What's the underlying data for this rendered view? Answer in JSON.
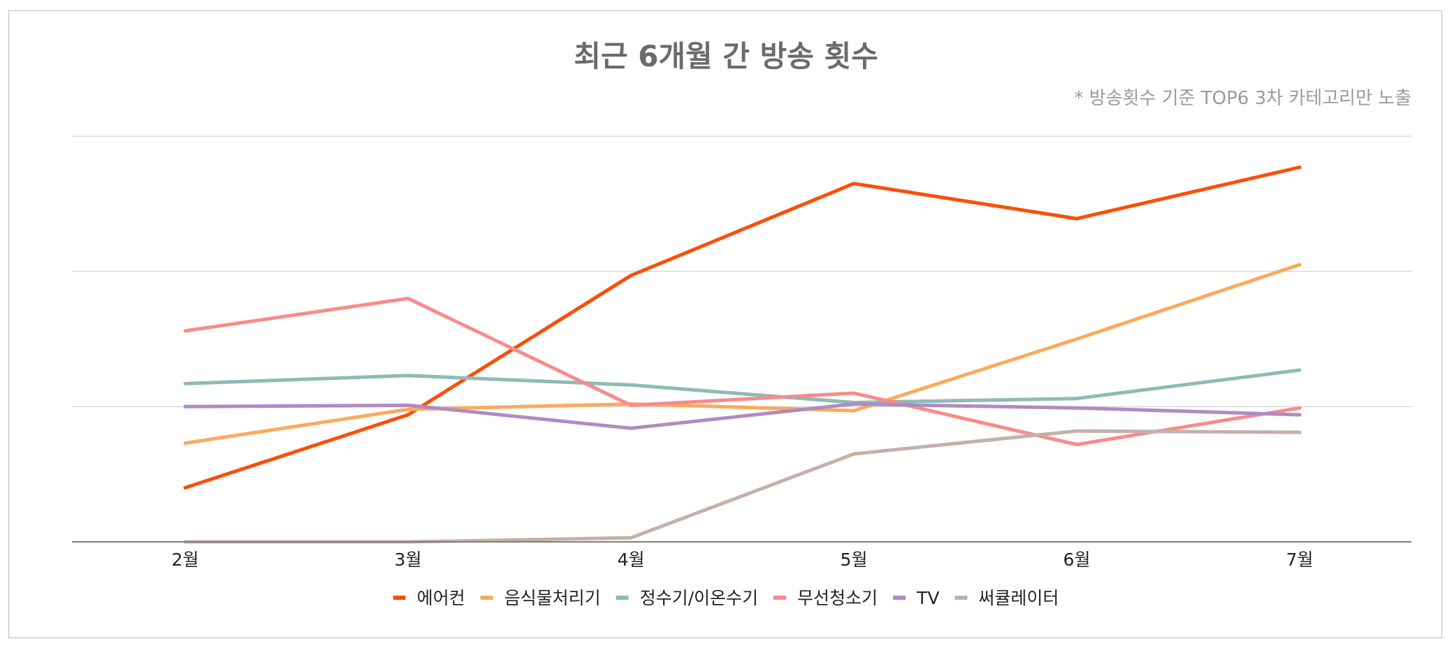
{
  "chart_data": {
    "type": "line",
    "title": "최근 6개월 간 방송 횟수",
    "subtitle": "* 방송횟수 기준 TOP6 3차 카테고리만 노출",
    "xlabel": "",
    "ylabel": "",
    "categories": [
      "2월",
      "3월",
      "4월",
      "5월",
      "6월",
      "7월"
    ],
    "ylim": [
      0,
      300
    ],
    "ygrid": [
      0,
      100,
      200,
      300
    ],
    "grid": true,
    "legend_position": "bottom",
    "series": [
      {
        "name": "에어컨",
        "color": "#fc4e07",
        "values": [
          40,
          94,
          197,
          265,
          239,
          277
        ]
      },
      {
        "name": "음식물처리기",
        "color": "#fbaa5d",
        "values": [
          73,
          98,
          102,
          97,
          150,
          205
        ]
      },
      {
        "name": "정수기/이온수기",
        "color": "#8fbab6",
        "values": [
          117,
          123,
          116,
          103,
          106,
          127
        ]
      },
      {
        "name": "무선청소기",
        "color": "#f88b8b",
        "values": [
          156,
          180,
          101,
          110,
          72,
          99
        ]
      },
      {
        "name": "TV",
        "color": "#ae8cc1",
        "values": [
          100,
          101,
          84,
          102,
          99,
          94
        ]
      },
      {
        "name": "써큘레이터",
        "color": "#c3b1a9",
        "values": [
          0,
          0,
          3,
          65,
          82,
          81
        ]
      }
    ]
  }
}
